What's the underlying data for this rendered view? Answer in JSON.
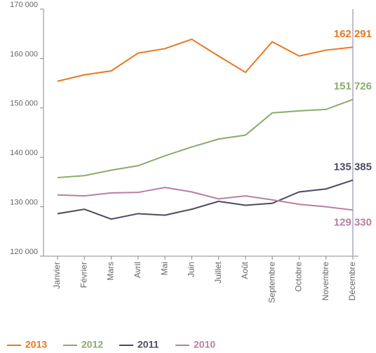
{
  "chart_data": {
    "type": "line",
    "categories": [
      "Janvier",
      "Février",
      "Mars",
      "Avril",
      "Mai",
      "Juin",
      "Juillet",
      "Août",
      "Septembre",
      "Octobre",
      "Novembre",
      "Décembre"
    ],
    "series": [
      {
        "name": "2013",
        "color": "#e87722",
        "values": [
          155400,
          156700,
          157500,
          161100,
          162000,
          163900,
          160500,
          157200,
          163400,
          160500,
          161700,
          162291
        ],
        "value_labels": [
          null,
          null,
          null,
          null,
          null,
          null,
          null,
          null,
          null,
          null,
          null,
          "162 291"
        ]
      },
      {
        "name": "2012",
        "color": "#8aab6b",
        "values": [
          135900,
          136300,
          137400,
          138300,
          140300,
          142100,
          143700,
          144500,
          149000,
          149400,
          149700,
          151726
        ],
        "value_labels": [
          null,
          null,
          null,
          null,
          null,
          null,
          null,
          null,
          null,
          null,
          null,
          "151 726"
        ]
      },
      {
        "name": "2011",
        "color": "#4a4a63",
        "values": [
          128600,
          129500,
          127500,
          128600,
          128300,
          129500,
          131100,
          130300,
          130700,
          133000,
          133600,
          135385
        ],
        "value_labels": [
          null,
          null,
          null,
          null,
          null,
          null,
          null,
          null,
          null,
          null,
          null,
          "135 385"
        ]
      },
      {
        "name": "2010",
        "color": "#b87fa0",
        "values": [
          132400,
          132200,
          132800,
          132900,
          133900,
          133000,
          131600,
          132200,
          131400,
          130500,
          130000,
          129330
        ],
        "value_labels": [
          null,
          null,
          null,
          null,
          null,
          null,
          null,
          null,
          null,
          null,
          null,
          "129 330"
        ]
      }
    ],
    "ylim": [
      120000,
      170000
    ],
    "yticks": [
      {
        "value": 120000,
        "label": "120 000"
      },
      {
        "value": 130000,
        "label": "130 000"
      },
      {
        "value": 140000,
        "label": "140 000"
      },
      {
        "value": 150000,
        "label": "150 000"
      },
      {
        "value": 160000,
        "label": "160 000"
      },
      {
        "value": 170000,
        "label": "170 000"
      }
    ],
    "legend": "bottom-left"
  }
}
